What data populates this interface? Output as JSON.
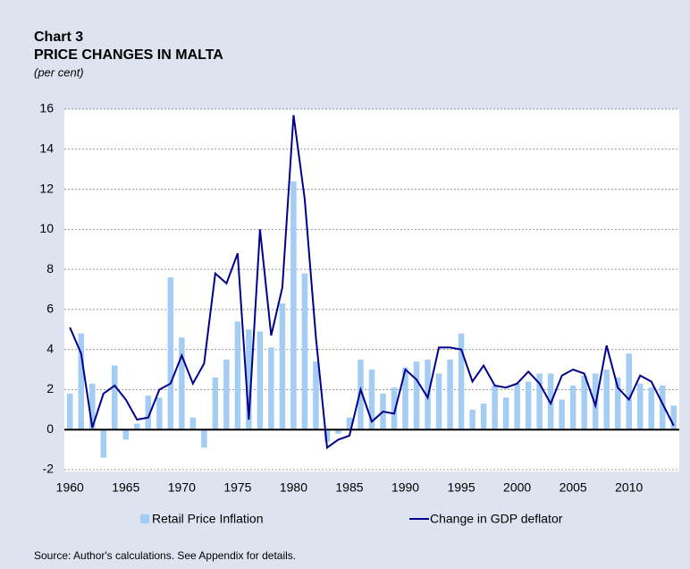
{
  "chart_data": {
    "type": "bar_line",
    "title": "Chart 3",
    "subtitle": "PRICE CHANGES IN MALTA",
    "unit_note": "(per cent)",
    "categories": [
      "1960",
      null,
      null,
      null,
      null,
      "1965",
      null,
      null,
      null,
      null,
      "1970",
      null,
      null,
      null,
      null,
      "1975",
      null,
      null,
      null,
      null,
      "1980",
      null,
      null,
      null,
      null,
      "1985",
      null,
      null,
      null,
      null,
      "1990",
      null,
      null,
      null,
      null,
      "1995",
      null,
      null,
      null,
      null,
      "2000",
      null,
      null,
      null,
      null,
      "2005",
      null,
      null,
      null,
      null,
      "2010",
      null,
      null,
      null,
      null
    ],
    "series": [
      {
        "name": "Retail Price Inflation",
        "type": "bar",
        "color": "#a3cdf5",
        "values": [
          1.8,
          4.8,
          2.3,
          -1.4,
          3.2,
          -0.5,
          0.3,
          1.7,
          1.6,
          7.6,
          4.6,
          0.6,
          -0.9,
          2.6,
          3.5,
          5.4,
          5.0,
          4.9,
          4.1,
          6.3,
          12.4,
          7.8,
          3.4,
          -0.6,
          -0.2,
          0.6,
          3.5,
          3.0,
          1.8,
          2.1,
          3.1,
          3.4,
          3.5,
          2.8,
          3.5,
          4.8,
          1.0,
          1.3,
          2.2,
          1.6,
          2.3,
          2.4,
          2.8,
          2.8,
          1.5,
          2.2,
          2.7,
          2.8,
          3.0,
          2.6,
          3.8,
          2.3,
          2.1,
          2.2,
          1.2
        ]
      },
      {
        "name": "Change in GDP deflator",
        "type": "line",
        "color": "#00008b",
        "values": [
          5.1,
          3.8,
          0.1,
          1.8,
          2.2,
          1.5,
          0.5,
          0.6,
          2.0,
          2.3,
          3.7,
          2.3,
          3.3,
          7.8,
          7.3,
          8.8,
          0.5,
          10.0,
          4.7,
          7.1,
          15.7,
          11.5,
          4.6,
          -0.9,
          -0.5,
          -0.3,
          2.0,
          0.4,
          0.9,
          0.8,
          3.0,
          2.5,
          1.6,
          4.1,
          4.1,
          4.0,
          2.4,
          3.2,
          2.2,
          2.1,
          2.3,
          2.9,
          2.3,
          1.3,
          2.7,
          3.0,
          2.8,
          1.2,
          4.2,
          2.1,
          1.5,
          2.7,
          2.4,
          1.3,
          0.2
        ]
      }
    ],
    "ylim": [
      -2,
      16
    ],
    "yticks": [
      -2,
      0,
      2,
      4,
      6,
      8,
      10,
      12,
      14,
      16
    ],
    "grid": true,
    "source": "Source: Author's calculations. See Appendix for details."
  }
}
